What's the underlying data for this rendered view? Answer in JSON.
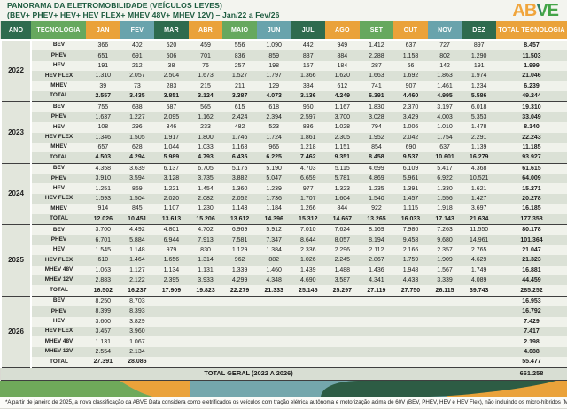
{
  "title": "PANORAMA DA ELETROMOBILIDADE (VEÍCULOS LEVES)",
  "subtitle": "(BEV+ PHEV+ HEV+ HEV FLEX+ MHEV 48V+ MHEV 12V) – Jan/22 a Fev/26",
  "logo": {
    "ab": "AB",
    "v": "V",
    "e": "E"
  },
  "colors": {
    "dark_green": "#2e6b4e",
    "green": "#66a85e",
    "orange": "#eaa23a",
    "teal": "#69a3ac",
    "title_green": "#1d5b3f",
    "stripe_light": "#f0f2eb",
    "stripe_dark": "#dbe1d6",
    "band_dark_green": "#2d5c44",
    "logo_orange": "#f0a53c",
    "logo_green": "#43a447",
    "logo_teal": "#2a7f66"
  },
  "chart_data": {
    "type": "table",
    "columns": [
      "ANO",
      "TECNOLOGIA",
      "JAN",
      "FEV",
      "MAR",
      "ABR",
      "MAIO",
      "JUN",
      "JUL",
      "AGO",
      "SET",
      "OUT",
      "NOV",
      "DEZ",
      "TOTAL TECNOLOGIA"
    ],
    "header_palette": [
      "dark_green",
      "green",
      "orange",
      "teal",
      "dark_green",
      "orange",
      "green",
      "teal",
      "dark_green",
      "orange",
      "green",
      "orange",
      "teal",
      "dark_green",
      "orange"
    ],
    "years": [
      {
        "year": "2022",
        "rows": [
          {
            "tech": "BEV",
            "values": [
              "366",
              "402",
              "520",
              "459",
              "556",
              "1.090",
              "442",
              "949",
              "1.412",
              "637",
              "727",
              "897"
            ],
            "total": "8.457"
          },
          {
            "tech": "PHEV",
            "values": [
              "651",
              "691",
              "506",
              "701",
              "836",
              "859",
              "837",
              "884",
              "2.288",
              "1.158",
              "802",
              "1.290"
            ],
            "total": "11.503"
          },
          {
            "tech": "HEV",
            "values": [
              "191",
              "212",
              "38",
              "76",
              "257",
              "198",
              "157",
              "184",
              "287",
              "66",
              "142",
              "191"
            ],
            "total": "1.999"
          },
          {
            "tech": "HEV FLEX",
            "values": [
              "1.310",
              "2.057",
              "2.504",
              "1.673",
              "1.527",
              "1.797",
              "1.366",
              "1.620",
              "1.663",
              "1.692",
              "1.863",
              "1.974"
            ],
            "total": "21.046"
          },
          {
            "tech": "MHEV",
            "values": [
              "39",
              "73",
              "283",
              "215",
              "211",
              "129",
              "334",
              "612",
              "741",
              "907",
              "1.461",
              "1.234"
            ],
            "total": "6.239"
          },
          {
            "tech": "TOTAL",
            "values": [
              "2.557",
              "3.435",
              "3.851",
              "3.124",
              "3.387",
              "4.073",
              "3.136",
              "4.249",
              "6.391",
              "4.460",
              "4.995",
              "5.586"
            ],
            "total": "49.244"
          }
        ]
      },
      {
        "year": "2023",
        "rows": [
          {
            "tech": "BEV",
            "values": [
              "755",
              "638",
              "587",
              "565",
              "615",
              "618",
              "950",
              "1.167",
              "1.830",
              "2.370",
              "3.197",
              "6.018"
            ],
            "total": "19.310"
          },
          {
            "tech": "PHEV",
            "values": [
              "1.637",
              "1.227",
              "2.095",
              "1.162",
              "2.424",
              "2.394",
              "2.597",
              "3.700",
              "3.028",
              "3.429",
              "4.003",
              "5.353"
            ],
            "total": "33.049"
          },
          {
            "tech": "HEV",
            "values": [
              "108",
              "296",
              "346",
              "233",
              "482",
              "523",
              "836",
              "1.028",
              "794",
              "1.006",
              "1.010",
              "1.478"
            ],
            "total": "8.140"
          },
          {
            "tech": "HEV FLEX",
            "values": [
              "1.346",
              "1.505",
              "1.917",
              "1.800",
              "1.746",
              "1.724",
              "1.861",
              "2.305",
              "1.952",
              "2.042",
              "1.754",
              "2.291"
            ],
            "total": "22.243"
          },
          {
            "tech": "MHEV",
            "values": [
              "657",
              "628",
              "1.044",
              "1.033",
              "1.168",
              "966",
              "1.218",
              "1.151",
              "854",
              "690",
              "637",
              "1.139"
            ],
            "total": "11.185"
          },
          {
            "tech": "TOTAL",
            "values": [
              "4.503",
              "4.294",
              "5.989",
              "4.793",
              "6.435",
              "6.225",
              "7.462",
              "9.351",
              "8.458",
              "9.537",
              "10.601",
              "16.279"
            ],
            "total": "93.927"
          }
        ]
      },
      {
        "year": "2024",
        "rows": [
          {
            "tech": "BEV",
            "values": [
              "4.358",
              "3.639",
              "6.137",
              "6.705",
              "5.175",
              "5.190",
              "4.703",
              "5.115",
              "4.699",
              "6.109",
              "5.417",
              "4.368"
            ],
            "total": "61.615"
          },
          {
            "tech": "PHEV",
            "values": [
              "3.910",
              "3.594",
              "3.128",
              "3.735",
              "3.882",
              "5.047",
              "6.659",
              "5.781",
              "4.869",
              "5.961",
              "6.922",
              "10.521"
            ],
            "total": "64.009"
          },
          {
            "tech": "HEV",
            "values": [
              "1.251",
              "869",
              "1.221",
              "1.454",
              "1.360",
              "1.239",
              "977",
              "1.323",
              "1.235",
              "1.391",
              "1.330",
              "1.621"
            ],
            "total": "15.271"
          },
          {
            "tech": "HEV FLEX",
            "values": [
              "1.593",
              "1.504",
              "2.020",
              "2.082",
              "2.052",
              "1.736",
              "1.707",
              "1.604",
              "1.540",
              "1.457",
              "1.556",
              "1.427"
            ],
            "total": "20.278"
          },
          {
            "tech": "MHEV",
            "values": [
              "914",
              "845",
              "1.107",
              "1.230",
              "1.143",
              "1.184",
              "1.266",
              "844",
              "922",
              "1.115",
              "1.918",
              "3.697"
            ],
            "total": "16.185"
          },
          {
            "tech": "TOTAL",
            "values": [
              "12.026",
              "10.451",
              "13.613",
              "15.206",
              "13.612",
              "14.396",
              "15.312",
              "14.667",
              "13.265",
              "16.033",
              "17.143",
              "21.634"
            ],
            "total": "177.358"
          }
        ]
      },
      {
        "year": "2025",
        "rows": [
          {
            "tech": "BEV",
            "values": [
              "3.700",
              "4.492",
              "4.801",
              "4.702",
              "6.969",
              "5.912",
              "7.010",
              "7.624",
              "8.169",
              "7.986",
              "7.263",
              "11.550"
            ],
            "total": "80.178"
          },
          {
            "tech": "PHEV",
            "values": [
              "6.701",
              "5.884",
              "6.944",
              "7.913",
              "7.581",
              "7.347",
              "8.644",
              "8.057",
              "8.194",
              "9.458",
              "9.680",
              "14.961"
            ],
            "total": "101.364"
          },
          {
            "tech": "HEV",
            "values": [
              "1.545",
              "1.148",
              "979",
              "830",
              "1.129",
              "1.384",
              "2.336",
              "2.296",
              "2.112",
              "2.166",
              "2.357",
              "2.765"
            ],
            "total": "21.047"
          },
          {
            "tech": "HEV FLEX",
            "values": [
              "610",
              "1.464",
              "1.656",
              "1.314",
              "962",
              "882",
              "1.026",
              "2.245",
              "2.867",
              "1.759",
              "1.909",
              "4.629"
            ],
            "total": "21.323"
          },
          {
            "tech": "MHEV 48V",
            "values": [
              "1.063",
              "1.127",
              "1.134",
              "1.131",
              "1.339",
              "1.460",
              "1.439",
              "1.488",
              "1.436",
              "1.948",
              "1.567",
              "1.749"
            ],
            "total": "16.881"
          },
          {
            "tech": "MHEV 12V",
            "values": [
              "2.883",
              "2.122",
              "2.395",
              "3.933",
              "4.299",
              "4.348",
              "4.690",
              "3.587",
              "4.341",
              "4.433",
              "3.339",
              "4.089"
            ],
            "total": "44.459"
          },
          {
            "tech": "TOTAL",
            "values": [
              "16.502",
              "16.237",
              "17.909",
              "19.823",
              "22.279",
              "21.333",
              "25.145",
              "25.297",
              "27.119",
              "27.750",
              "26.115",
              "39.743"
            ],
            "total": "285.252"
          }
        ]
      },
      {
        "year": "2026",
        "rows": [
          {
            "tech": "BEV",
            "values": [
              "8.250",
              "8.703",
              "",
              "",
              "",
              "",
              "",
              "",
              "",
              "",
              "",
              ""
            ],
            "total": "16.953"
          },
          {
            "tech": "PHEV",
            "values": [
              "8.399",
              "8.393",
              "",
              "",
              "",
              "",
              "",
              "",
              "",
              "",
              "",
              ""
            ],
            "total": "16.792"
          },
          {
            "tech": "HEV",
            "values": [
              "3.600",
              "3.829",
              "",
              "",
              "",
              "",
              "",
              "",
              "",
              "",
              "",
              ""
            ],
            "total": "7.429"
          },
          {
            "tech": "HEV FLEX",
            "values": [
              "3.457",
              "3.960",
              "",
              "",
              "",
              "",
              "",
              "",
              "",
              "",
              "",
              ""
            ],
            "total": "7.417"
          },
          {
            "tech": "MHEV 48V",
            "values": [
              "1.131",
              "1.067",
              "",
              "",
              "",
              "",
              "",
              "",
              "",
              "",
              "",
              ""
            ],
            "total": "2.198"
          },
          {
            "tech": "MHEV 12V",
            "values": [
              "2.554",
              "2.134",
              "",
              "",
              "",
              "",
              "",
              "",
              "",
              "",
              "",
              ""
            ],
            "total": "4.688"
          },
          {
            "tech": "TOTAL",
            "values": [
              "27.391",
              "28.086",
              "",
              "",
              "",
              "",
              "",
              "",
              "",
              "",
              "",
              ""
            ],
            "total": "55.477"
          }
        ]
      }
    ],
    "grand_total": {
      "label": "TOTAL GERAL (2022 A 2026)",
      "value": "661.258"
    }
  },
  "footnote": "*A partir de janeiro de 2025, a nova classificação da ABVE Data considera como eletrificados os veículos com tração elétrica autônoma e motorização acima de 60V (BEV, PHEV, HEV e HEV Flex), não incluindo os micro-híbridos (MHEV 12V ou 48V)."
}
